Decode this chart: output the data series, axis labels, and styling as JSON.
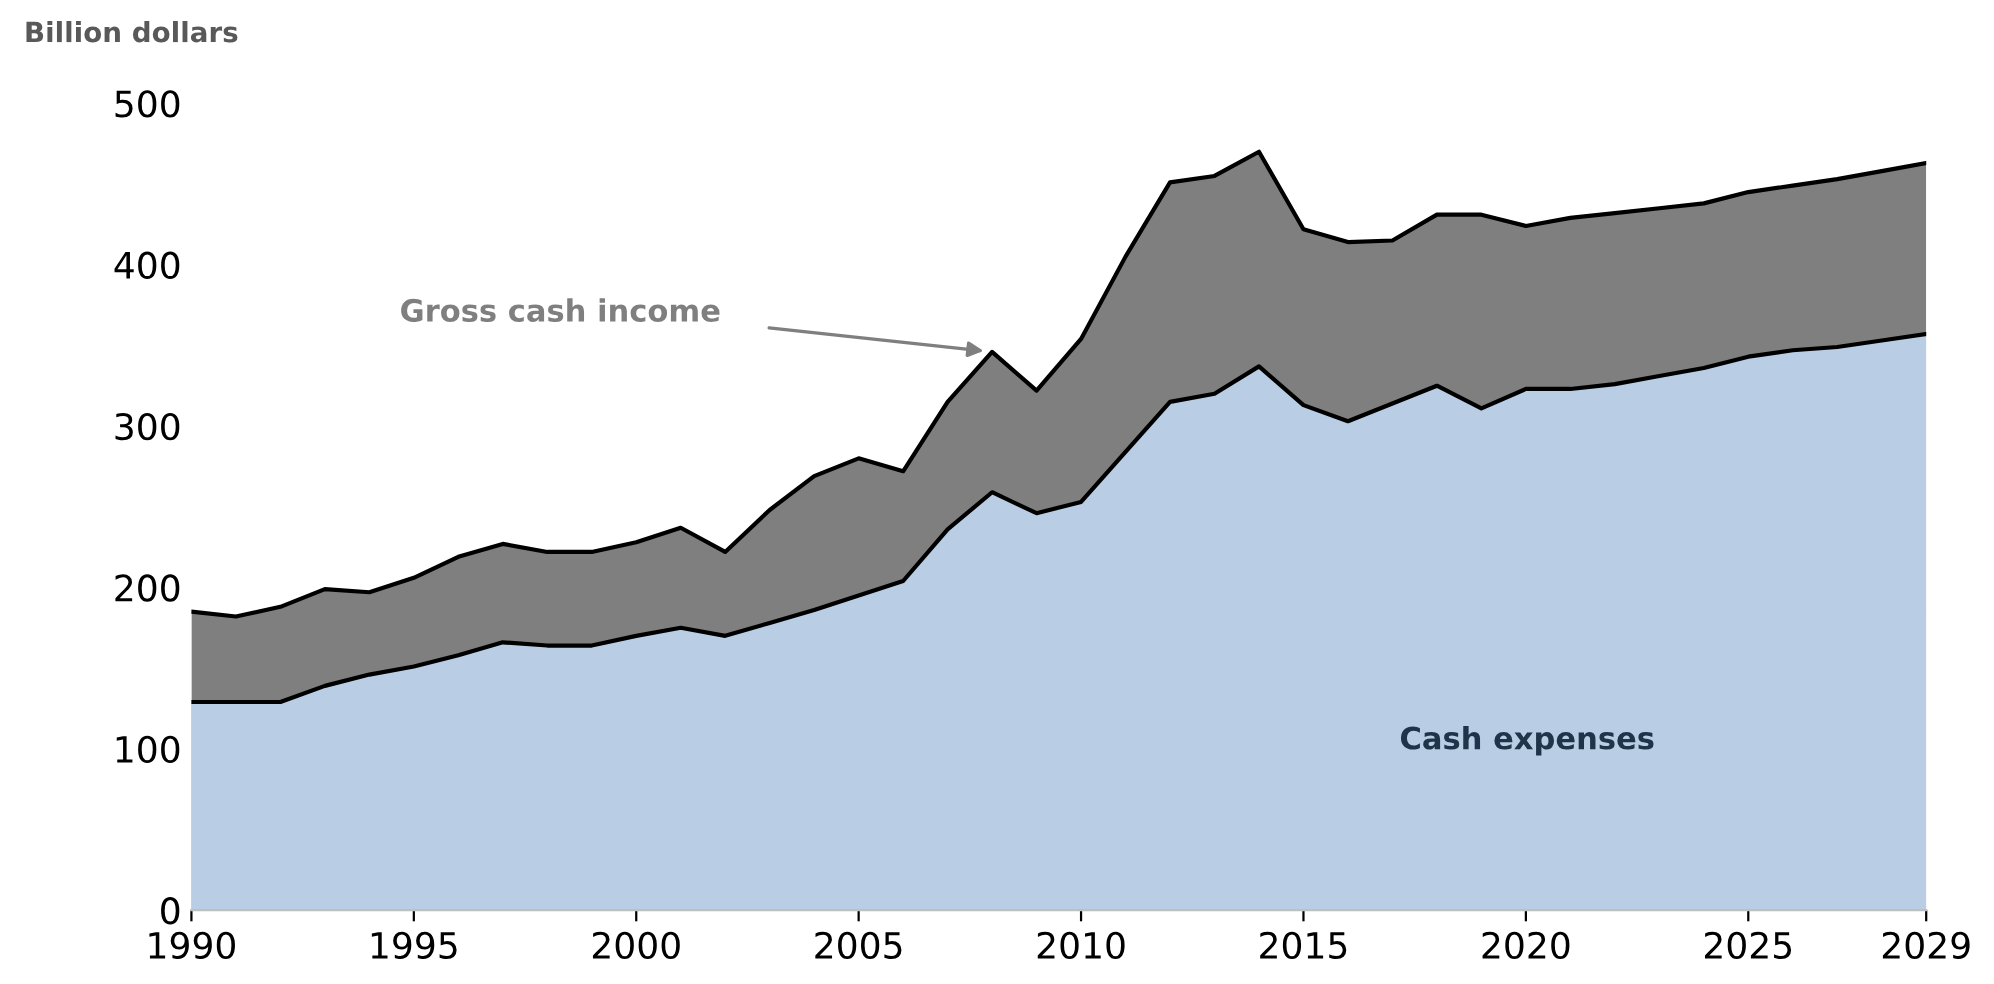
{
  "chart_data": {
    "type": "area",
    "ylabel": "Billion dollars",
    "x": [
      1990,
      1991,
      1992,
      1993,
      1994,
      1995,
      1996,
      1997,
      1998,
      1999,
      2000,
      2001,
      2002,
      2003,
      2004,
      2005,
      2006,
      2007,
      2008,
      2009,
      2010,
      2011,
      2012,
      2013,
      2014,
      2015,
      2016,
      2017,
      2018,
      2019,
      2020,
      2021,
      2022,
      2023,
      2024,
      2025,
      2026,
      2027,
      2028,
      2029
    ],
    "series": [
      {
        "name": "Gross cash income",
        "color": "#7f7f7f",
        "values": [
          185,
          182,
          188,
          199,
          197,
          206,
          219,
          227,
          222,
          222,
          228,
          237,
          222,
          248,
          269,
          280,
          272,
          315,
          346,
          322,
          354,
          405,
          451,
          455,
          470,
          422,
          414,
          415,
          431,
          431,
          424,
          429,
          432,
          435,
          438,
          445,
          449,
          453,
          458,
          463
        ]
      },
      {
        "name": "Cash expenses",
        "color": "#b9cde5",
        "values": [
          129,
          129,
          129,
          139,
          146,
          151,
          158,
          166,
          164,
          164,
          170,
          175,
          170,
          178,
          186,
          195,
          204,
          236,
          259,
          246,
          253,
          284,
          315,
          320,
          337,
          313,
          303,
          314,
          325,
          311,
          323,
          323,
          326,
          331,
          336,
          343,
          347,
          349,
          353,
          357
        ]
      }
    ],
    "xlim": [
      1990,
      2029
    ],
    "xticks": [
      1990,
      1995,
      2000,
      2005,
      2010,
      2015,
      2020,
      2025,
      2029
    ],
    "ylim": [
      0,
      500
    ],
    "yticks": [
      0,
      100,
      200,
      300,
      400,
      500
    ],
    "grid": false
  }
}
